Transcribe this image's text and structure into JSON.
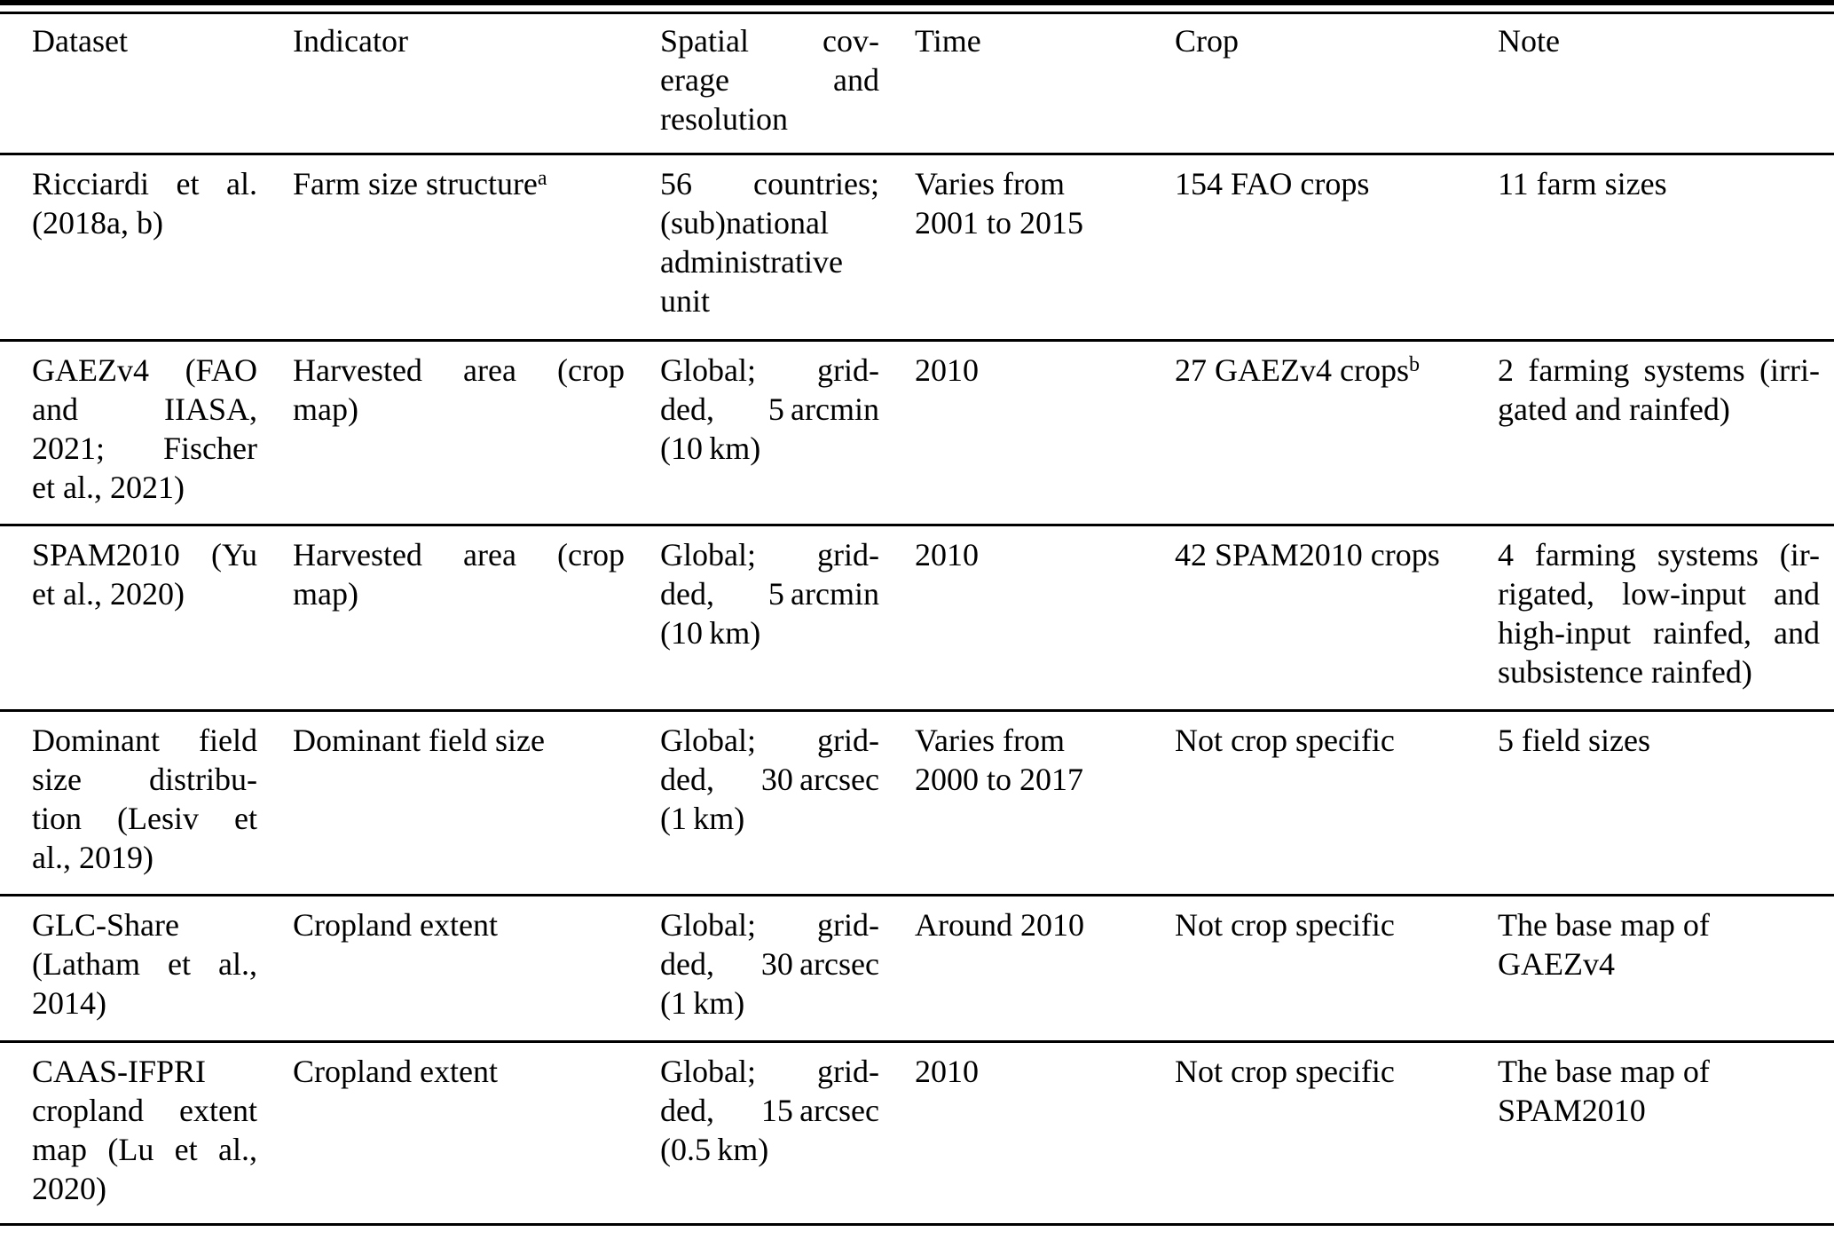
{
  "table": {
    "columns": [
      {
        "key": "dataset",
        "label_lines": [
          "Dataset"
        ]
      },
      {
        "key": "indicator",
        "label_lines": [
          "Indicator"
        ]
      },
      {
        "key": "spatial",
        "label_lines": [
          "Spatial cov-",
          "erage and",
          "resolution"
        ]
      },
      {
        "key": "time",
        "label_lines": [
          "Time"
        ]
      },
      {
        "key": "crop",
        "label_lines": [
          "Crop"
        ]
      },
      {
        "key": "note",
        "label_lines": [
          "Note"
        ]
      }
    ],
    "rows": [
      {
        "dataset": [
          "Ricciardi et al.",
          "(2018a, b)"
        ],
        "indicator": [
          {
            "text": "Farm size structure",
            "sup": "a"
          }
        ],
        "spatial": [
          "56 countries;",
          "(sub)national",
          "administrative",
          "unit"
        ],
        "time": [
          {
            "text": "Varies from",
            "justify": false
          },
          "2001 to 2015"
        ],
        "crop": [
          "154 FAO crops"
        ],
        "note": [
          "11 farm sizes"
        ]
      },
      {
        "dataset": [
          "GAEZv4 (FAO",
          "and IIASA,",
          "2021; Fischer",
          "et al., 2021)"
        ],
        "indicator": [
          "Harvested area (crop",
          "map)"
        ],
        "spatial": [
          "Global; grid-",
          "ded, 5 arcmin",
          "(10 km)"
        ],
        "time": [
          "2010"
        ],
        "crop": [
          {
            "text": "27 GAEZv4 crops",
            "sup": "b"
          }
        ],
        "note": [
          "2 farming systems (irri-",
          "gated and rainfed)"
        ]
      },
      {
        "dataset": [
          "SPAM2010 (Yu",
          "et al., 2020)"
        ],
        "indicator": [
          "Harvested area (crop",
          "map)"
        ],
        "spatial": [
          "Global; grid-",
          "ded, 5 arcmin",
          "(10 km)"
        ],
        "time": [
          "2010"
        ],
        "crop": [
          "42 SPAM2010 crops"
        ],
        "note": [
          "4 farming systems (ir-",
          "rigated, low-input and",
          "high-input rainfed, and",
          "subsistence rainfed)"
        ]
      },
      {
        "dataset": [
          "Dominant field",
          "size distribu-",
          "tion (Lesiv et",
          "al., 2019)"
        ],
        "indicator": [
          "Dominant field size"
        ],
        "spatial": [
          "Global; grid-",
          "ded, 30 arcsec",
          "(1 km)"
        ],
        "time": [
          {
            "text": "Varies from",
            "justify": false
          },
          "2000 to 2017"
        ],
        "crop": [
          "Not crop specific"
        ],
        "note": [
          "5 field sizes"
        ]
      },
      {
        "dataset": [
          "GLC-Share",
          "(Latham et al.,",
          "2014)"
        ],
        "indicator": [
          "Cropland extent"
        ],
        "spatial": [
          "Global; grid-",
          "ded, 30 arcsec",
          "(1 km)"
        ],
        "time": [
          "Around 2010"
        ],
        "crop": [
          "Not crop specific"
        ],
        "note": [
          {
            "text": "The base map of",
            "justify": false
          },
          "GAEZv4"
        ]
      },
      {
        "dataset": [
          "CAAS-IFPRI",
          "cropland extent",
          "map (Lu et al.,",
          "2020)"
        ],
        "indicator": [
          "Cropland extent"
        ],
        "spatial": [
          "Global; grid-",
          "ded, 15 arcsec",
          "(0.5 km)"
        ],
        "time": [
          "2010"
        ],
        "crop": [
          "Not crop specific"
        ],
        "note": [
          {
            "text": "The base map of",
            "justify": false
          },
          "SPAM2010"
        ]
      }
    ]
  }
}
